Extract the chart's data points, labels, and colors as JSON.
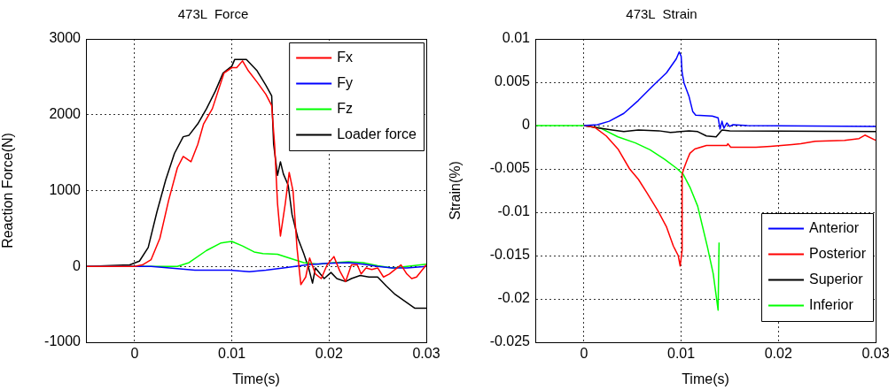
{
  "chart_data": [
    {
      "type": "line",
      "title": "473L  Force",
      "xlabel": "Time(s)",
      "ylabel": "Reaction Force(N)",
      "xlim": [
        -0.005,
        0.03
      ],
      "xticks": [
        0,
        0.01,
        0.02,
        0.03
      ],
      "ylim": [
        -1000,
        3000
      ],
      "yticks": [
        -1000,
        0,
        1000,
        2000,
        3000
      ],
      "grid": true,
      "legend": "top right",
      "marker": "none",
      "line_style": "solid",
      "series": [
        {
          "name": "Fx",
          "color": "#ff0000",
          "x": [
            -0.0049,
            0,
            0.0008,
            0.0017,
            0.0026,
            0.0035,
            0.0044,
            0.005,
            0.0058,
            0.0065,
            0.0071,
            0.008,
            0.0092,
            0.01,
            0.0105,
            0.0111,
            0.0117,
            0.0126,
            0.0135,
            0.0141,
            0.0144,
            0.0147,
            0.015,
            0.0155,
            0.0159,
            0.0163,
            0.0167,
            0.0171,
            0.0176,
            0.018,
            0.0186,
            0.0192,
            0.0198,
            0.0205,
            0.0211,
            0.0217,
            0.0223,
            0.0229,
            0.0233,
            0.0238,
            0.0244,
            0.025,
            0.0256,
            0.0262,
            0.0268,
            0.0274,
            0.028,
            0.0285,
            0.029,
            0.03
          ],
          "values": [
            0,
            0,
            20,
            90,
            370,
            870,
            1300,
            1450,
            1380,
            1610,
            1880,
            2080,
            2550,
            2620,
            2620,
            2710,
            2580,
            2430,
            2270,
            2120,
            1610,
            830,
            400,
            830,
            1240,
            990,
            250,
            -240,
            -140,
            110,
            -100,
            -160,
            20,
            130,
            -60,
            -200,
            20,
            20,
            -100,
            -20,
            -40,
            -20,
            -140,
            -100,
            -40,
            20,
            -100,
            -160,
            -140,
            20
          ]
        },
        {
          "name": "Fy",
          "color": "#0000ff",
          "x": [
            -0.0049,
            0.0017,
            0.0044,
            0.0062,
            0.0098,
            0.0118,
            0.0135,
            0.0153,
            0.0177,
            0.0198,
            0.022,
            0.0235,
            0.025,
            0.0265,
            0.028,
            0.03
          ],
          "values": [
            0,
            0,
            -30,
            -50,
            -50,
            -70,
            -50,
            -20,
            20,
            40,
            50,
            30,
            0,
            -20,
            -20,
            0
          ]
        },
        {
          "name": "Fz",
          "color": "#00ff00",
          "x": [
            -0.0049,
            0,
            0.0044,
            0.0056,
            0.0074,
            0.0089,
            0.01,
            0.0111,
            0.0123,
            0.0132,
            0.0147,
            0.0159,
            0.0174,
            0.0189,
            0.0205,
            0.022,
            0.0235,
            0.025,
            0.0265,
            0.028,
            0.03
          ],
          "values": [
            0,
            0,
            0,
            50,
            210,
            310,
            330,
            270,
            190,
            170,
            160,
            110,
            50,
            30,
            50,
            60,
            50,
            10,
            -20,
            0,
            30
          ]
        },
        {
          "name": "Loader force",
          "color": "#000000",
          "x": [
            -0.0049,
            -0.0005,
            0.0005,
            0.0014,
            0.0023,
            0.0032,
            0.0041,
            0.005,
            0.0056,
            0.0065,
            0.0074,
            0.0083,
            0.0091,
            0.01,
            0.0103,
            0.0115,
            0.0126,
            0.0135,
            0.0141,
            0.0143,
            0.0147,
            0.015,
            0.0153,
            0.0158,
            0.0162,
            0.0168,
            0.0174,
            0.0179,
            0.0183,
            0.0186,
            0.0191,
            0.0195,
            0.0202,
            0.0208,
            0.0217,
            0.0223,
            0.0232,
            0.0241,
            0.025,
            0.0259,
            0.0268,
            0.0277,
            0.0288,
            0.03
          ],
          "values": [
            0,
            20,
            70,
            250,
            720,
            1140,
            1490,
            1710,
            1730,
            1880,
            2080,
            2310,
            2550,
            2640,
            2730,
            2730,
            2580,
            2390,
            2250,
            1610,
            1200,
            1380,
            1220,
            1070,
            680,
            370,
            170,
            -20,
            -220,
            -20,
            -100,
            -160,
            -80,
            -160,
            -200,
            -160,
            -120,
            -140,
            -140,
            -260,
            -370,
            -450,
            -550,
            -550
          ]
        }
      ]
    },
    {
      "type": "line",
      "title": "473L  Strain",
      "xlabel": "Time(s)",
      "ylabel": "Strain(%)",
      "xlim": [
        -0.005,
        0.03
      ],
      "xticks": [
        0,
        0.01,
        0.02,
        0.03
      ],
      "ylim": [
        -0.025,
        0.01
      ],
      "yticks": [
        -0.025,
        -0.02,
        -0.015,
        -0.01,
        -0.005,
        0,
        0.005,
        0.01
      ],
      "grid": true,
      "legend": "bottom right",
      "marker": "none",
      "line_style": "solid",
      "series": [
        {
          "name": "Anterior",
          "color": "#0000ff",
          "x": [
            0,
            0.0014,
            0.0026,
            0.0041,
            0.0056,
            0.0071,
            0.0085,
            0.0095,
            0.0098,
            0.01,
            0.0101,
            0.0103,
            0.0108,
            0.0112,
            0.0115,
            0.0132,
            0.0138,
            0.014,
            0.0142,
            0.0144,
            0.0147,
            0.015,
            0.0153,
            0.0168,
            0.03
          ],
          "values": [
            0,
            0.0001,
            0.0005,
            0.0014,
            0.0029,
            0.0046,
            0.0061,
            0.0077,
            0.0085,
            0.008,
            0.0061,
            0.0049,
            0.0034,
            0.0016,
            0.0012,
            0.0011,
            0.0009,
            -0.0004,
            0.0005,
            -0.0003,
            0.0003,
            -0.0001,
            0.0001,
            0,
            -0.0001
          ]
        },
        {
          "name": "Posterior",
          "color": "#ff0000",
          "x": [
            0,
            0.0011,
            0.0023,
            0.0035,
            0.0047,
            0.0056,
            0.0065,
            0.0076,
            0.0085,
            0.0092,
            0.0097,
            0.0099,
            0.0101,
            0.0101,
            0.0103,
            0.0106,
            0.0109,
            0.0114,
            0.0126,
            0.0147,
            0.0148,
            0.0151,
            0.0177,
            0.0192,
            0.0214,
            0.0223,
            0.0238,
            0.0268,
            0.0283,
            0.0289,
            0.03
          ],
          "values": [
            0,
            -0.0002,
            -0.0012,
            -0.0027,
            -0.005,
            -0.0062,
            -0.0078,
            -0.0098,
            -0.0117,
            -0.0139,
            -0.015,
            -0.0162,
            -0.0144,
            -0.0056,
            -0.0049,
            -0.004,
            -0.0032,
            -0.0027,
            -0.0023,
            -0.0023,
            -0.0021,
            -0.0025,
            -0.0025,
            -0.0024,
            -0.0022,
            -0.0021,
            -0.0018,
            -0.0017,
            -0.0015,
            -0.0011,
            -0.0017
          ]
        },
        {
          "name": "Superior",
          "color": "#000000",
          "x": [
            0,
            0.0017,
            0.0029,
            0.0041,
            0.0056,
            0.0077,
            0.0089,
            0.0108,
            0.0117,
            0.0126,
            0.0136,
            0.0142,
            0.015,
            0.03
          ],
          "values": [
            0,
            -0.0003,
            -0.0005,
            -0.0007,
            -0.0005,
            -0.0006,
            -0.0008,
            -0.0006,
            -0.0007,
            -0.0012,
            -0.0013,
            -0.0005,
            -0.0006,
            -0.0007
          ]
        },
        {
          "name": "Inferior",
          "color": "#00ff00",
          "x": [
            -0.0049,
            0,
            0.0017,
            0.0035,
            0.0053,
            0.0068,
            0.0083,
            0.0095,
            0.0102,
            0.0109,
            0.0117,
            0.0127,
            0.0133,
            0.0138,
            0.0139
          ],
          "values": [
            0,
            0,
            -0.0003,
            -0.0013,
            -0.002,
            -0.0028,
            -0.0039,
            -0.0049,
            -0.0056,
            -0.0071,
            -0.0093,
            -0.014,
            -0.0171,
            -0.0213,
            -0.0135
          ]
        }
      ]
    }
  ]
}
